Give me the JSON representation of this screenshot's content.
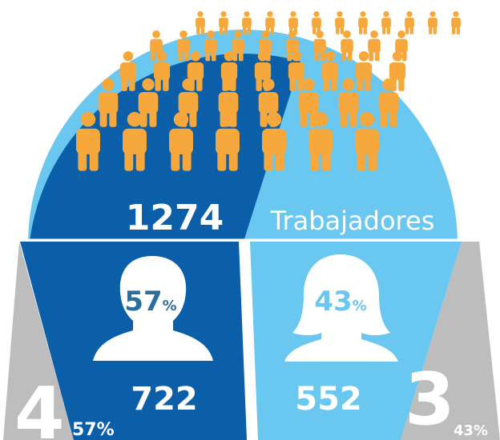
{
  "total": {
    "value": "1274",
    "label": "Trabajadores"
  },
  "men": {
    "percent": "57",
    "percent_unit": "%",
    "count": "722",
    "big": "4",
    "big_percent": "57%"
  },
  "women": {
    "percent": "43",
    "percent_unit": "%",
    "count": "552",
    "big": "3",
    "big_percent": "43%"
  }
}
